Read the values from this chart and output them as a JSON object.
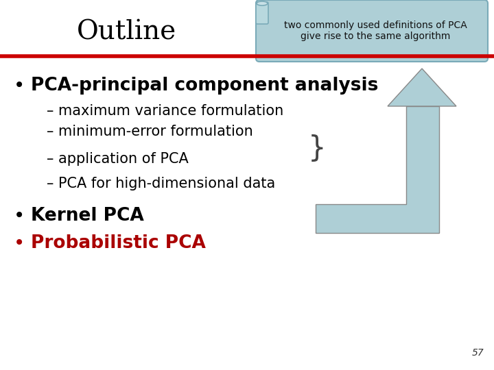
{
  "bg_color": "#ffffff",
  "title_text": "Outline",
  "title_color": "#000000",
  "title_fontsize": 28,
  "header_box_text": "two commonly used definitions of PCA\ngive rise to the same algorithm",
  "header_box_bg": "#aecfd6",
  "header_box_border": "#7aaab8",
  "red_line_color": "#cc0000",
  "bullet1_text": "PCA-principal component analysis",
  "bullet1_color": "#000000",
  "bullet1_fontsize": 19,
  "sub_items": [
    "– maximum variance formulation",
    "– minimum-error formulation",
    "– application of PCA",
    "– PCA for high-dimensional data"
  ],
  "sub_color": "#000000",
  "sub_fontsize": 15,
  "bullet2_text": "Kernel PCA",
  "bullet2_color": "#000000",
  "bullet2_fontsize": 19,
  "bullet3_text": "Probabilistic PCA",
  "bullet3_color": "#aa0000",
  "bullet3_fontsize": 19,
  "page_num": "57",
  "arrow_color": "#aecfd6",
  "arrow_border": "#888888"
}
